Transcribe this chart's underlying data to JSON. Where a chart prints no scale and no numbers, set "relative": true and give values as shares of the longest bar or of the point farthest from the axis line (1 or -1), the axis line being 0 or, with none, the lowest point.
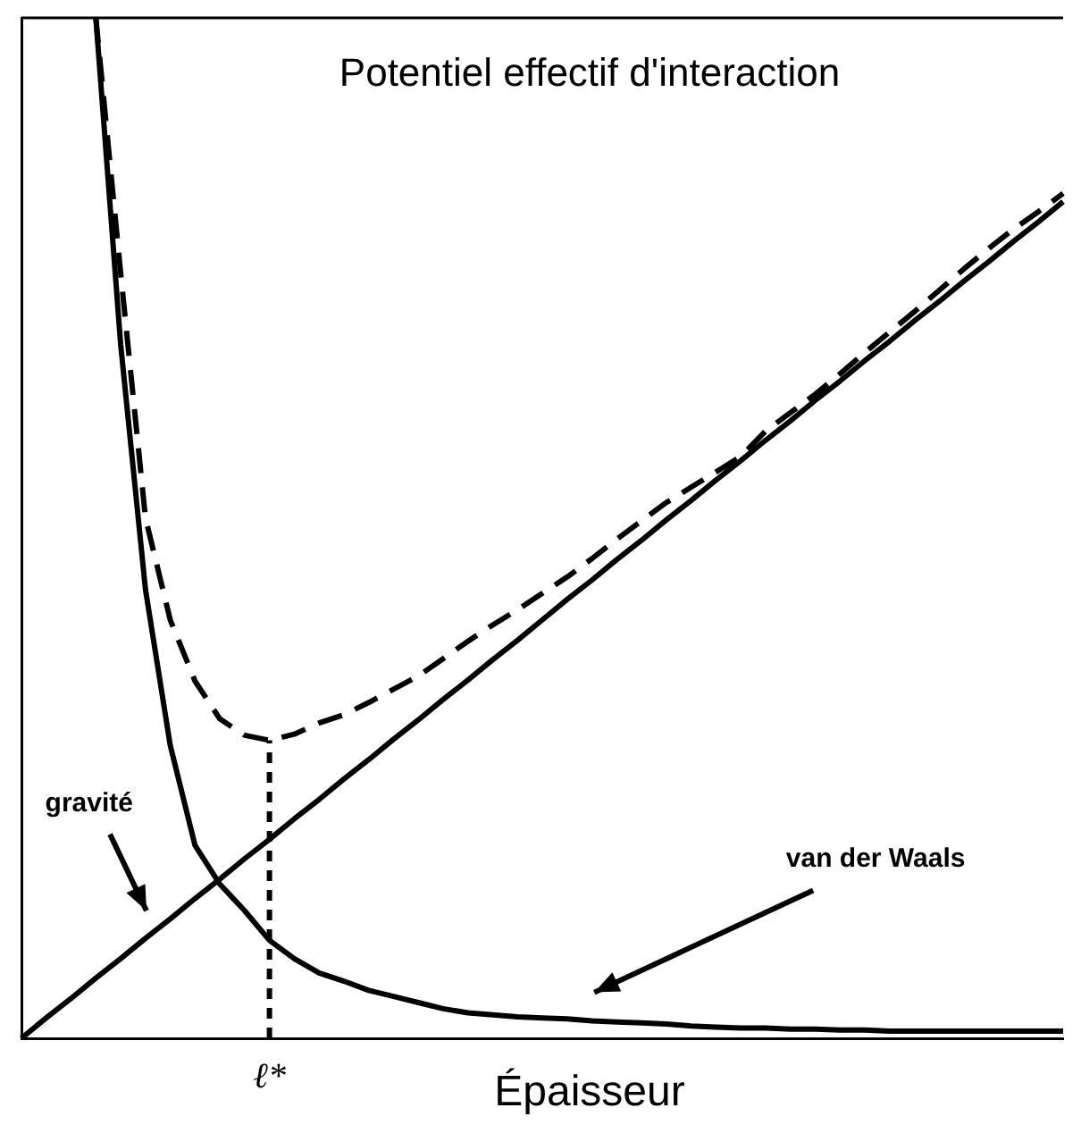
{
  "chart_data": {
    "type": "line",
    "title": "Potentiel effectif d'interaction",
    "xlabel": "Épaisseur",
    "relative": true,
    "grid": false,
    "legend": false,
    "marker": "none",
    "categories": [
      null,
      null,
      null,
      null,
      null,
      null,
      null,
      null,
      null,
      null,
      null,
      null,
      null,
      null,
      null,
      null,
      null,
      null,
      null,
      null,
      null,
      null,
      null,
      null,
      null,
      null,
      null,
      null,
      null,
      null,
      null,
      null,
      null,
      null,
      null,
      null,
      null,
      null,
      null,
      null,
      null,
      null,
      null
    ],
    "series": [
      {
        "color": "#000000",
        "line_style": "solid",
        "values": [
          0,
          0.02,
          0.039,
          0.059,
          0.078,
          0.098,
          0.117,
          0.137,
          0.156,
          0.176,
          0.195,
          0.215,
          0.234,
          0.254,
          0.273,
          0.293,
          0.312,
          0.332,
          0.351,
          0.371,
          0.39,
          0.41,
          0.43,
          0.449,
          0.469,
          0.488,
          0.508,
          0.527,
          0.547,
          0.566,
          0.586,
          0.605,
          0.625,
          0.644,
          0.664,
          0.683,
          0.703,
          0.722,
          0.742,
          0.761,
          0.781,
          0.8,
          0.82
        ]
      },
      {
        "color": "#000000",
        "line_style": "solid",
        "values": [
          null,
          null,
          null,
          1,
          0.68,
          0.44,
          0.287,
          0.189,
          0.151,
          0.125,
          0.096,
          0.078,
          0.064,
          0.056,
          0.047,
          0.041,
          0.035,
          0.029,
          0.025,
          0.023,
          0.021,
          0.02,
          0.019,
          0.017,
          0.016,
          0.015,
          0.014,
          0.012,
          0.011,
          0.01,
          0.01,
          0.009,
          0.009,
          0.008,
          0.008,
          0.007,
          0.007,
          0.007,
          0.007,
          0.007,
          0.007,
          0.007,
          0.007
        ]
      },
      {
        "color": "#000000",
        "line_style": "dashed",
        "values": [
          null,
          null,
          null,
          1,
          0.75,
          0.51,
          0.41,
          0.35,
          0.313,
          0.297,
          0.292,
          0.298,
          0.309,
          0.317,
          0.329,
          0.342,
          0.355,
          0.372,
          0.389,
          0.405,
          0.42,
          0.436,
          0.452,
          0.47,
          0.489,
          0.507,
          0.525,
          0.54,
          0.555,
          0.57,
          0.595,
          0.613,
          0.631,
          0.651,
          0.672,
          0.692,
          0.712,
          0.733,
          0.754,
          0.774,
          0.793,
          0.81,
          0.828
        ]
      }
    ],
    "annotations": [
      "ℓ*",
      "gravité",
      "van der Waals"
    ]
  }
}
